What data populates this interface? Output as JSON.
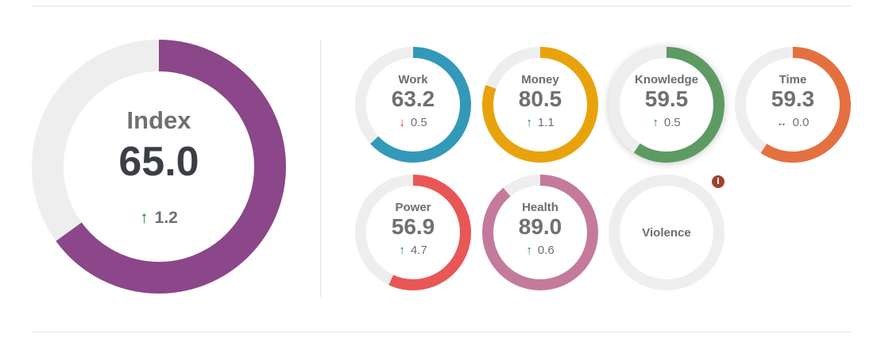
{
  "colors": {
    "track": "#eeeeee",
    "index": "#8b4789",
    "work": "#3399b9",
    "money": "#e8a30c",
    "knowledge": "#5d9b62",
    "time": "#e5703f",
    "power": "#e95656",
    "health": "#c47a9b",
    "up": "#1d8a2e",
    "down": "#d62b1f"
  },
  "main": {
    "title": "Index",
    "value": "65.0",
    "delta_value": "1.2",
    "delta_direction": "up",
    "fill_fraction": 0.65
  },
  "tiles": [
    {
      "key": "work",
      "title": "Work",
      "value": "63.2",
      "delta_value": "0.5",
      "delta_direction": "down",
      "fill_fraction": 0.632
    },
    {
      "key": "money",
      "title": "Money",
      "value": "80.5",
      "delta_value": "1.1",
      "delta_direction": "up",
      "fill_fraction": 0.805
    },
    {
      "key": "knowledge",
      "title": "Knowledge",
      "value": "59.5",
      "delta_value": "0.5",
      "delta_direction": "up",
      "fill_fraction": 0.595
    },
    {
      "key": "time",
      "title": "Time",
      "value": "59.3",
      "delta_value": "0.0",
      "delta_direction": "flat",
      "fill_fraction": 0.593
    },
    {
      "key": "power",
      "title": "Power",
      "value": "56.9",
      "delta_value": "4.7",
      "delta_direction": "up",
      "fill_fraction": 0.569
    },
    {
      "key": "health",
      "title": "Health",
      "value": "89.0",
      "delta_value": "0.6",
      "delta_direction": "up",
      "fill_fraction": 0.89
    },
    {
      "key": "violence",
      "title": "Violence",
      "value": "",
      "delta_value": "",
      "delta_direction": "",
      "fill_fraction": 0
    }
  ],
  "icons": {
    "up": "↑",
    "down": "↓",
    "flat": "↔",
    "info": "i"
  }
}
